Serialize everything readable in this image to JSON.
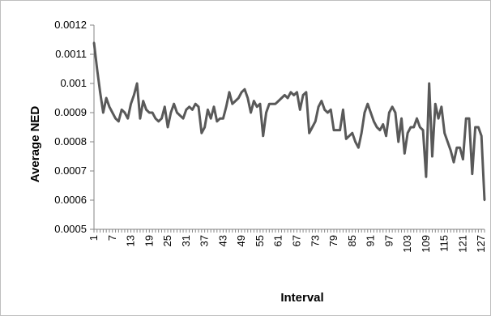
{
  "chart_data": {
    "type": "line",
    "title": "",
    "xlabel": "Interval",
    "ylabel": "Average NED",
    "ylim": [
      0.0005,
      0.0012
    ],
    "xlim": [
      1,
      128
    ],
    "y_ticks": [
      "0.0005",
      "0.0006",
      "0.0007",
      "0.0008",
      "0.0009",
      "0.001",
      "0.0011",
      "0.0012"
    ],
    "y_tick_values": [
      0.0005,
      0.0006,
      0.0007,
      0.0008,
      0.0009,
      0.001,
      0.0011,
      0.0012
    ],
    "x_ticks": [
      "1",
      "7",
      "13",
      "19",
      "25",
      "31",
      "37",
      "43",
      "49",
      "55",
      "61",
      "67",
      "73",
      "79",
      "85",
      "91",
      "97",
      "103",
      "109",
      "115",
      "121",
      "127"
    ],
    "grid": false,
    "legend": "none",
    "line_color": "#595959",
    "x": [
      1,
      2,
      3,
      4,
      5,
      6,
      7,
      8,
      9,
      10,
      11,
      12,
      13,
      14,
      15,
      16,
      17,
      18,
      19,
      20,
      21,
      22,
      23,
      24,
      25,
      26,
      27,
      28,
      29,
      30,
      31,
      32,
      33,
      34,
      35,
      36,
      37,
      38,
      39,
      40,
      41,
      42,
      43,
      44,
      45,
      46,
      47,
      48,
      49,
      50,
      51,
      52,
      53,
      54,
      55,
      56,
      57,
      58,
      59,
      60,
      61,
      62,
      63,
      64,
      65,
      66,
      67,
      68,
      69,
      70,
      71,
      72,
      73,
      74,
      75,
      76,
      77,
      78,
      79,
      80,
      81,
      82,
      83,
      84,
      85,
      86,
      87,
      88,
      89,
      90,
      91,
      92,
      93,
      94,
      95,
      96,
      97,
      98,
      99,
      100,
      101,
      102,
      103,
      104,
      105,
      106,
      107,
      108,
      109,
      110,
      111,
      112,
      113,
      114,
      115,
      116,
      117,
      118,
      119,
      120,
      121,
      122,
      123,
      124,
      125,
      126,
      127,
      128
    ],
    "series": [
      {
        "values": [
          0.00114,
          0.00105,
          0.00097,
          0.0009,
          0.00095,
          0.00092,
          0.0009,
          0.00088,
          0.00087,
          0.00091,
          0.0009,
          0.00088,
          0.00093,
          0.00096,
          0.001,
          0.00088,
          0.00094,
          0.00091,
          0.0009,
          0.0009,
          0.00088,
          0.00087,
          0.00088,
          0.00092,
          0.00085,
          0.0009,
          0.00093,
          0.0009,
          0.00089,
          0.00088,
          0.00091,
          0.00092,
          0.00091,
          0.00093,
          0.00092,
          0.00083,
          0.00085,
          0.00091,
          0.00088,
          0.00092,
          0.00087,
          0.00088,
          0.00088,
          0.00092,
          0.00097,
          0.00093,
          0.00094,
          0.00095,
          0.00097,
          0.00098,
          0.00095,
          0.0009,
          0.00094,
          0.00092,
          0.00093,
          0.00082,
          0.0009,
          0.00093,
          0.00093,
          0.00093,
          0.00094,
          0.00095,
          0.00096,
          0.00095,
          0.00097,
          0.00096,
          0.00097,
          0.00091,
          0.00096,
          0.00097,
          0.00083,
          0.00085,
          0.00087,
          0.00092,
          0.00094,
          0.00091,
          0.0009,
          0.00091,
          0.00084,
          0.00084,
          0.00084,
          0.00091,
          0.00081,
          0.00082,
          0.00083,
          0.0008,
          0.00078,
          0.00083,
          0.0009,
          0.00093,
          0.0009,
          0.00087,
          0.00085,
          0.00084,
          0.00086,
          0.00082,
          0.0009,
          0.00092,
          0.0009,
          0.0008,
          0.00088,
          0.00076,
          0.00083,
          0.00085,
          0.00085,
          0.00088,
          0.00085,
          0.00084,
          0.00068,
          0.001,
          0.00075,
          0.00093,
          0.00088,
          0.00092,
          0.00083,
          0.0008,
          0.00077,
          0.00073,
          0.00078,
          0.00078,
          0.00074,
          0.00088,
          0.00088,
          0.00069,
          0.00085,
          0.00085,
          0.00082,
          0.0006
        ]
      }
    ]
  }
}
